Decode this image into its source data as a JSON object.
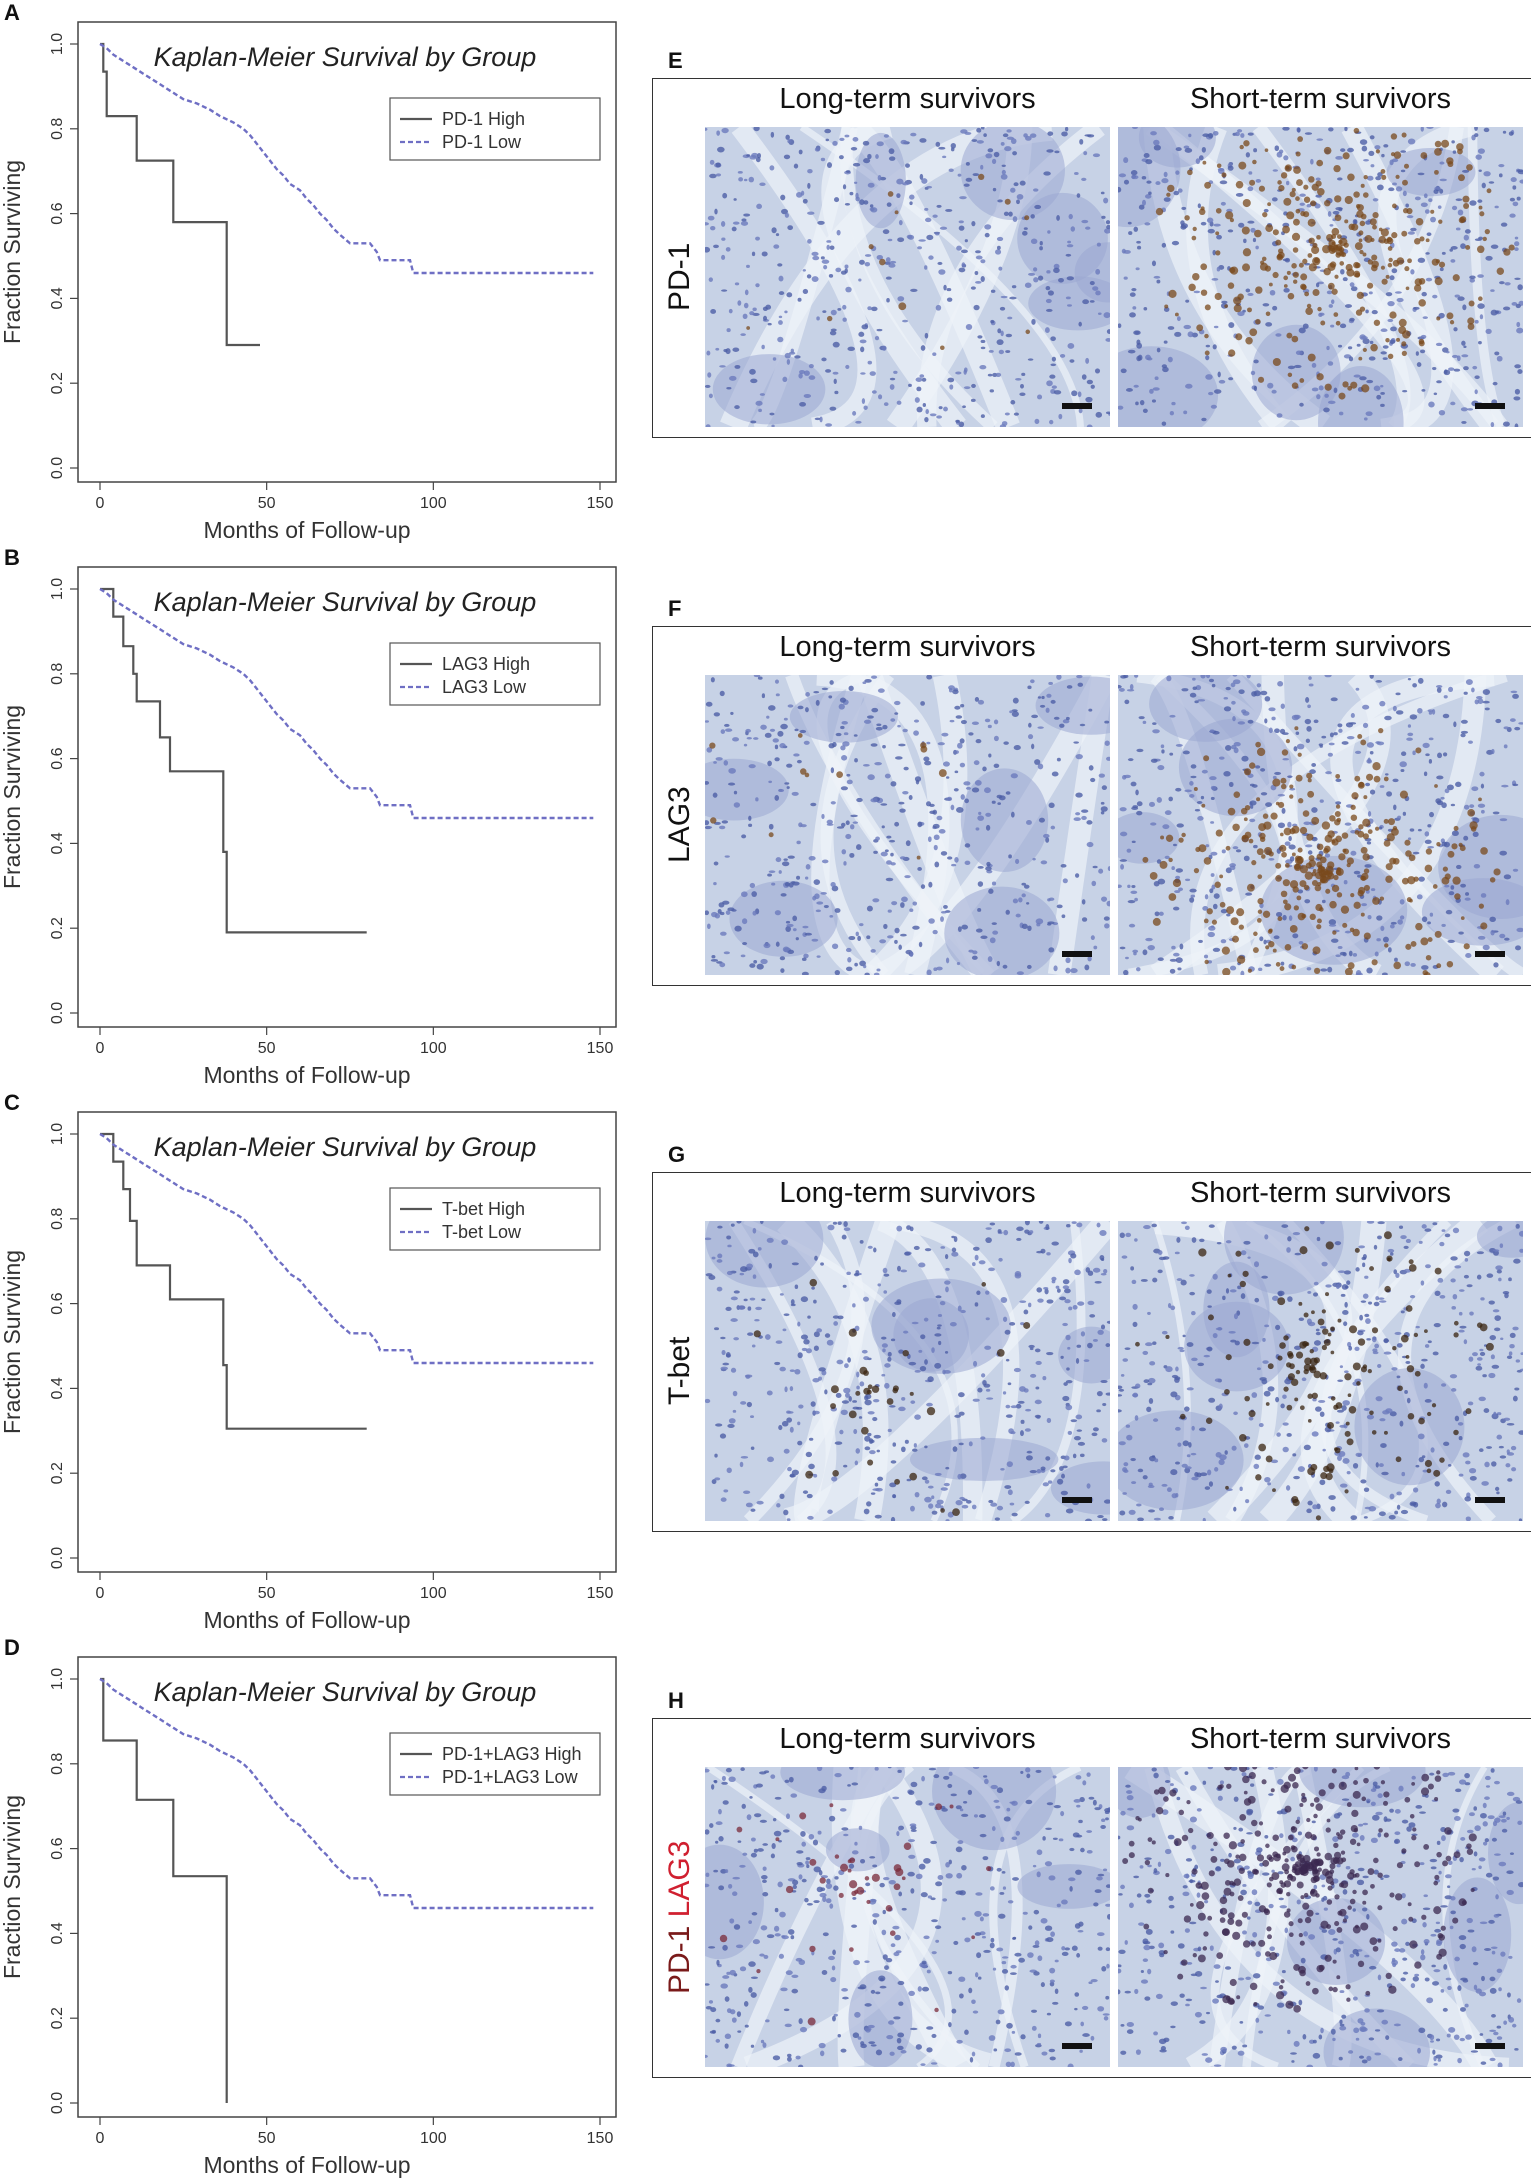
{
  "km_panels": [
    {
      "letter": "A",
      "chart_data": {
        "type": "line",
        "title": "Kaplan-Meier Survival by Group",
        "xlabel": "Months of Follow-up",
        "ylabel": "Fraction Surviving",
        "xlim": [
          0,
          150
        ],
        "ylim": [
          0,
          1
        ],
        "xticks": [
          0,
          50,
          100,
          150
        ],
        "yticks": [
          0.0,
          0.2,
          0.4,
          0.6,
          0.8,
          1.0
        ],
        "legend_position": "top-right",
        "series": [
          {
            "name": "PD-1 High",
            "style": "solid",
            "color": "#555555",
            "points": [
              [
                0,
                1.0
              ],
              [
                1,
                1.0
              ],
              [
                1,
                0.935
              ],
              [
                2,
                0.935
              ],
              [
                2,
                0.83
              ],
              [
                11,
                0.83
              ],
              [
                11,
                0.725
              ],
              [
                22,
                0.725
              ],
              [
                22,
                0.58
              ],
              [
                38,
                0.58
              ],
              [
                38,
                0.29
              ],
              [
                48,
                0.29
              ]
            ]
          },
          {
            "name": "PD-1 Low",
            "style": "dashed",
            "color": "#6f6fc4",
            "points": [
              [
                0,
                1.0
              ],
              [
                2,
                0.99
              ],
              [
                4,
                0.975
              ],
              [
                7,
                0.96
              ],
              [
                10,
                0.945
              ],
              [
                13,
                0.93
              ],
              [
                16,
                0.915
              ],
              [
                19,
                0.9
              ],
              [
                22,
                0.885
              ],
              [
                25,
                0.87
              ],
              [
                29,
                0.86
              ],
              [
                33,
                0.845
              ],
              [
                36,
                0.83
              ],
              [
                40,
                0.815
              ],
              [
                43,
                0.8
              ],
              [
                45,
                0.785
              ],
              [
                47,
                0.765
              ],
              [
                49,
                0.745
              ],
              [
                51,
                0.725
              ],
              [
                53,
                0.705
              ],
              [
                55,
                0.69
              ],
              [
                57,
                0.67
              ],
              [
                60,
                0.655
              ],
              [
                62,
                0.635
              ],
              [
                64,
                0.62
              ],
              [
                66,
                0.6
              ],
              [
                68,
                0.585
              ],
              [
                70,
                0.565
              ],
              [
                72,
                0.55
              ],
              [
                75,
                0.53
              ],
              [
                81,
                0.53
              ],
              [
                83,
                0.51
              ],
              [
                84,
                0.49
              ],
              [
                93,
                0.49
              ],
              [
                94,
                0.46
              ],
              [
                148,
                0.46
              ]
            ]
          }
        ]
      }
    },
    {
      "letter": "B",
      "chart_data": {
        "type": "line",
        "title": "Kaplan-Meier Survival by Group",
        "xlabel": "Months of Follow-up",
        "ylabel": "Fraction Surviving",
        "xlim": [
          0,
          150
        ],
        "ylim": [
          0,
          1
        ],
        "xticks": [
          0,
          50,
          100,
          150
        ],
        "yticks": [
          0.0,
          0.2,
          0.4,
          0.6,
          0.8,
          1.0
        ],
        "legend_position": "top-right",
        "series": [
          {
            "name": "LAG3 High",
            "style": "solid",
            "color": "#555555",
            "points": [
              [
                0,
                1.0
              ],
              [
                4,
                1.0
              ],
              [
                4,
                0.935
              ],
              [
                7,
                0.935
              ],
              [
                7,
                0.865
              ],
              [
                10,
                0.865
              ],
              [
                10,
                0.8
              ],
              [
                11,
                0.8
              ],
              [
                11,
                0.735
              ],
              [
                18,
                0.735
              ],
              [
                18,
                0.65
              ],
              [
                21,
                0.65
              ],
              [
                21,
                0.57
              ],
              [
                37,
                0.57
              ],
              [
                37,
                0.38
              ],
              [
                38,
                0.38
              ],
              [
                38,
                0.19
              ],
              [
                80,
                0.19
              ]
            ]
          },
          {
            "name": "LAG3 Low",
            "style": "dashed",
            "color": "#6f6fc4",
            "points": [
              [
                0,
                1.0
              ],
              [
                2,
                0.99
              ],
              [
                4,
                0.975
              ],
              [
                7,
                0.96
              ],
              [
                10,
                0.945
              ],
              [
                13,
                0.93
              ],
              [
                16,
                0.915
              ],
              [
                19,
                0.9
              ],
              [
                22,
                0.885
              ],
              [
                25,
                0.87
              ],
              [
                29,
                0.86
              ],
              [
                33,
                0.845
              ],
              [
                36,
                0.83
              ],
              [
                40,
                0.815
              ],
              [
                43,
                0.8
              ],
              [
                45,
                0.785
              ],
              [
                47,
                0.765
              ],
              [
                49,
                0.745
              ],
              [
                51,
                0.725
              ],
              [
                53,
                0.705
              ],
              [
                55,
                0.69
              ],
              [
                57,
                0.67
              ],
              [
                60,
                0.655
              ],
              [
                62,
                0.635
              ],
              [
                64,
                0.62
              ],
              [
                66,
                0.6
              ],
              [
                68,
                0.585
              ],
              [
                70,
                0.565
              ],
              [
                72,
                0.55
              ],
              [
                75,
                0.53
              ],
              [
                81,
                0.53
              ],
              [
                83,
                0.51
              ],
              [
                84,
                0.49
              ],
              [
                93,
                0.49
              ],
              [
                94,
                0.46
              ],
              [
                148,
                0.46
              ]
            ]
          }
        ]
      }
    },
    {
      "letter": "C",
      "chart_data": {
        "type": "line",
        "title": "Kaplan-Meier Survival by Group",
        "xlabel": "Months of Follow-up",
        "ylabel": "Fraction Surviving",
        "xlim": [
          0,
          150
        ],
        "ylim": [
          0,
          1
        ],
        "xticks": [
          0,
          50,
          100,
          150
        ],
        "yticks": [
          0.0,
          0.2,
          0.4,
          0.6,
          0.8,
          1.0
        ],
        "legend_position": "top-right",
        "series": [
          {
            "name": "T-bet High",
            "style": "solid",
            "color": "#555555",
            "points": [
              [
                0,
                1.0
              ],
              [
                4,
                1.0
              ],
              [
                4,
                0.935
              ],
              [
                7,
                0.935
              ],
              [
                7,
                0.87
              ],
              [
                9,
                0.87
              ],
              [
                9,
                0.795
              ],
              [
                11,
                0.795
              ],
              [
                11,
                0.69
              ],
              [
                21,
                0.69
              ],
              [
                21,
                0.61
              ],
              [
                37,
                0.61
              ],
              [
                37,
                0.455
              ],
              [
                38,
                0.455
              ],
              [
                38,
                0.305
              ],
              [
                80,
                0.305
              ]
            ]
          },
          {
            "name": "T-bet Low",
            "style": "dashed",
            "color": "#6f6fc4",
            "points": [
              [
                0,
                1.0
              ],
              [
                2,
                0.99
              ],
              [
                4,
                0.975
              ],
              [
                7,
                0.96
              ],
              [
                10,
                0.945
              ],
              [
                13,
                0.93
              ],
              [
                16,
                0.915
              ],
              [
                19,
                0.9
              ],
              [
                22,
                0.885
              ],
              [
                25,
                0.87
              ],
              [
                29,
                0.86
              ],
              [
                33,
                0.845
              ],
              [
                36,
                0.83
              ],
              [
                40,
                0.815
              ],
              [
                43,
                0.8
              ],
              [
                45,
                0.785
              ],
              [
                47,
                0.765
              ],
              [
                49,
                0.745
              ],
              [
                51,
                0.725
              ],
              [
                53,
                0.705
              ],
              [
                55,
                0.69
              ],
              [
                57,
                0.67
              ],
              [
                60,
                0.655
              ],
              [
                62,
                0.635
              ],
              [
                64,
                0.62
              ],
              [
                66,
                0.6
              ],
              [
                68,
                0.585
              ],
              [
                70,
                0.565
              ],
              [
                72,
                0.55
              ],
              [
                75,
                0.53
              ],
              [
                81,
                0.53
              ],
              [
                83,
                0.51
              ],
              [
                84,
                0.49
              ],
              [
                93,
                0.49
              ],
              [
                94,
                0.46
              ],
              [
                148,
                0.46
              ]
            ]
          }
        ]
      }
    },
    {
      "letter": "D",
      "chart_data": {
        "type": "line",
        "title": "Kaplan-Meier Survival by Group",
        "xlabel": "Months of Follow-up",
        "ylabel": "Fraction Surviving",
        "xlim": [
          0,
          150
        ],
        "ylim": [
          0,
          1
        ],
        "xticks": [
          0,
          50,
          100,
          150
        ],
        "yticks": [
          0.0,
          0.2,
          0.4,
          0.6,
          0.8,
          1.0
        ],
        "legend_position": "top-right",
        "series": [
          {
            "name": "PD-1+LAG3 High",
            "style": "solid",
            "color": "#555555",
            "points": [
              [
                0,
                1.0
              ],
              [
                1,
                1.0
              ],
              [
                1,
                0.855
              ],
              [
                11,
                0.855
              ],
              [
                11,
                0.715
              ],
              [
                22,
                0.715
              ],
              [
                22,
                0.535
              ],
              [
                38,
                0.535
              ],
              [
                38,
                0.0
              ]
            ]
          },
          {
            "name": "PD-1+LAG3 Low",
            "style": "dashed",
            "color": "#6f6fc4",
            "points": [
              [
                0,
                1.0
              ],
              [
                2,
                0.99
              ],
              [
                4,
                0.975
              ],
              [
                7,
                0.96
              ],
              [
                10,
                0.945
              ],
              [
                13,
                0.93
              ],
              [
                16,
                0.915
              ],
              [
                19,
                0.9
              ],
              [
                22,
                0.885
              ],
              [
                25,
                0.87
              ],
              [
                29,
                0.86
              ],
              [
                33,
                0.845
              ],
              [
                36,
                0.83
              ],
              [
                40,
                0.815
              ],
              [
                43,
                0.8
              ],
              [
                45,
                0.785
              ],
              [
                47,
                0.765
              ],
              [
                49,
                0.745
              ],
              [
                51,
                0.725
              ],
              [
                53,
                0.705
              ],
              [
                55,
                0.69
              ],
              [
                57,
                0.67
              ],
              [
                60,
                0.655
              ],
              [
                62,
                0.635
              ],
              [
                64,
                0.62
              ],
              [
                66,
                0.6
              ],
              [
                68,
                0.585
              ],
              [
                70,
                0.565
              ],
              [
                72,
                0.55
              ],
              [
                75,
                0.53
              ],
              [
                81,
                0.53
              ],
              [
                83,
                0.51
              ],
              [
                84,
                0.49
              ],
              [
                93,
                0.49
              ],
              [
                94,
                0.46
              ],
              [
                148,
                0.46
              ]
            ]
          }
        ]
      }
    }
  ],
  "ihc_panels": [
    {
      "letter": "E",
      "marker_parts": [
        {
          "text": "PD-1",
          "color": "#111111"
        }
      ],
      "left_header": "Long-term survivors",
      "right_header": "Short-term survivors",
      "stain": "brown"
    },
    {
      "letter": "F",
      "marker_parts": [
        {
          "text": "LAG3",
          "color": "#111111"
        }
      ],
      "left_header": "Long-term survivors",
      "right_header": "Short-term survivors",
      "stain": "brown"
    },
    {
      "letter": "G",
      "marker_parts": [
        {
          "text": "T-bet",
          "color": "#111111"
        }
      ],
      "left_header": "Long-term survivors",
      "right_header": "Short-term survivors",
      "stain": "nuclear"
    },
    {
      "letter": "H",
      "marker_parts": [
        {
          "text": "PD-1 ",
          "color": "#7a1a1a"
        },
        {
          "text": "LAG3",
          "color": "#d02030"
        }
      ],
      "left_header": "Long-term survivors",
      "right_header": "Short-term survivors",
      "stain": "dual"
    }
  ]
}
